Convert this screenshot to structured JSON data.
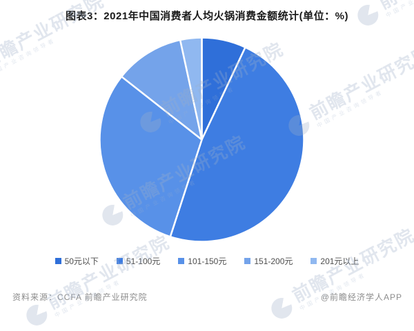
{
  "title": "图表3：2021年中国消费者人均火锅消费金额统计(单位：%)",
  "chart_data": {
    "type": "pie",
    "title": "2021年中国消费者人均火锅消费金额统计",
    "unit": "%",
    "start_angle_deg": 0,
    "direction": "clockwise",
    "categories": [
      "50元以下",
      "51-100元",
      "101-150元",
      "151-200元",
      "201元以上"
    ],
    "values": [
      7,
      48,
      30.6,
      11,
      3.4
    ],
    "colors": [
      "#2F6FD9",
      "#3E7DE2",
      "#5891E8",
      "#74A3EA",
      "#90B8F0"
    ],
    "legend_position": "bottom",
    "data_labels": false,
    "slice_border_color": "#ffffff"
  },
  "footer": {
    "source": "资料来源：CCFA 前瞻产业研究院",
    "credit": "@前瞻经济学人APP"
  },
  "watermark": {
    "text": "前瞻产业研究院",
    "subtext": "中国产业咨询领导者",
    "logo": "qianzhan-circle-logo"
  }
}
